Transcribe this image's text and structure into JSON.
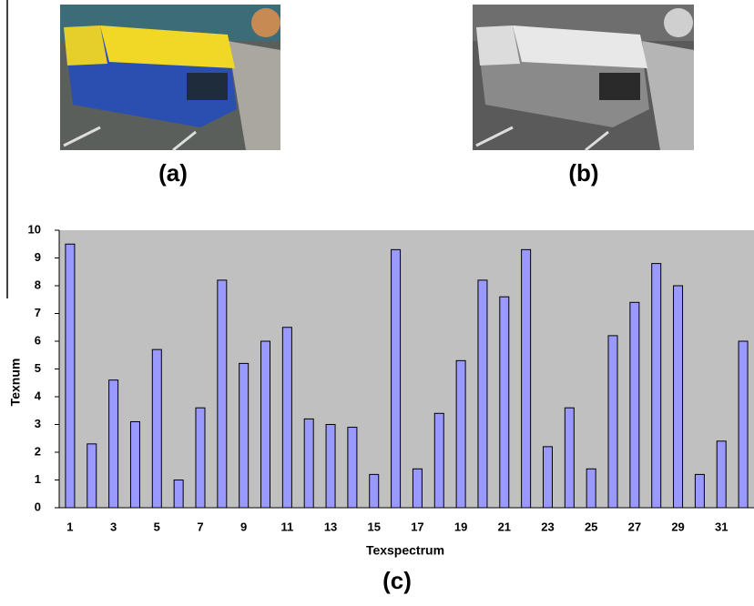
{
  "captions": [
    "(a)",
    "(b)",
    "(c)"
  ],
  "chart_data": {
    "type": "bar",
    "x_label": "Texspectrum",
    "y_label": "Texnum",
    "categories": [
      1,
      null,
      3,
      null,
      5,
      null,
      7,
      null,
      9,
      null,
      11,
      null,
      13,
      null,
      15,
      null,
      17,
      null,
      19,
      null,
      21,
      null,
      23,
      null,
      25,
      null,
      27,
      null,
      29,
      null,
      31,
      null
    ],
    "values": [
      9.5,
      2.3,
      4.6,
      3.1,
      5.7,
      1.0,
      3.6,
      8.2,
      5.2,
      6.0,
      6.5,
      3.2,
      3.0,
      2.9,
      1.2,
      9.3,
      1.4,
      3.4,
      5.3,
      8.2,
      7.6,
      9.3,
      2.2,
      3.6,
      1.4,
      6.2,
      7.4,
      8.8,
      8.0,
      1.2,
      2.4,
      6.0
    ],
    "color": "#9999ff",
    "plot_background": "#c0c0c0",
    "ylim": [
      0,
      10
    ],
    "yticks": [
      0,
      1,
      2,
      3,
      4,
      5,
      6,
      7,
      8,
      9,
      10
    ],
    "grid": false
  }
}
